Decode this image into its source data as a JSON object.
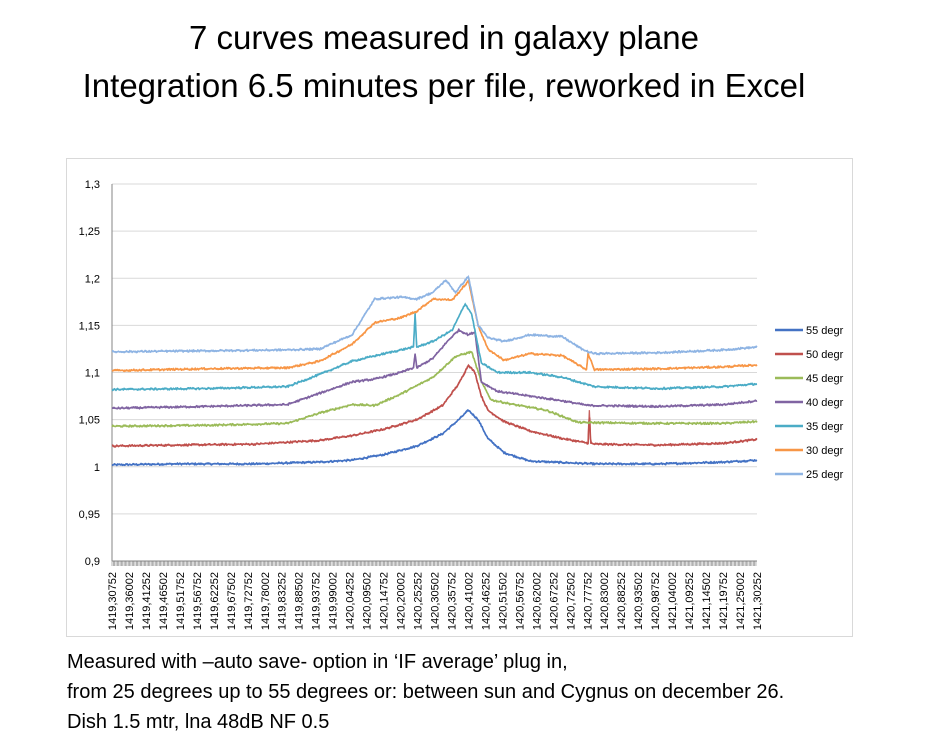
{
  "slide": {
    "title_line1": "7 curves measured in galaxy plane",
    "title_line2": "Integration 6.5 minutes per file, reworked in Excel",
    "caption_line1": "Measured with –auto save- option in ‘IF average’ plug in,",
    "caption_line2": "from 25 degrees up to 55 degrees or: between sun and Cygnus on december 26.",
    "caption_line3": "Dish 1.5 mtr, lna 48dB NF 0.5"
  },
  "chart_data": {
    "type": "line",
    "title": "",
    "xlabel": "",
    "ylabel": "",
    "ylim": [
      0.9,
      1.3
    ],
    "yticks": [
      0.9,
      0.95,
      1,
      1.05,
      1.1,
      1.15,
      1.2,
      1.25,
      1.3
    ],
    "ytick_labels": [
      "0,9",
      "0,95",
      "1",
      "1,05",
      "1,1",
      "1,15",
      "1,2",
      "1,25",
      "1,3"
    ],
    "xlim": [
      1419.30752,
      1421.30252
    ],
    "xtick_labels": [
      "1419,30752",
      "1419,36002",
      "1419,41252",
      "1419,46502",
      "1419,51752",
      "1419,56752",
      "1419,62252",
      "1419,67502",
      "1419,72752",
      "1419,78002",
      "1419,83252",
      "1419,88502",
      "1419,93752",
      "1419,99002",
      "1420,04252",
      "1420,09502",
      "1420,14752",
      "1420,20002",
      "1420,25252",
      "1420,30502",
      "1420,35752",
      "1420,41002",
      "1420,46252",
      "1420,51502",
      "1420,56752",
      "1420,62002",
      "1420,67252",
      "1420,72502",
      "1420,77752",
      "1420,83002",
      "1420,88252",
      "1420,93502",
      "1420,98752",
      "1421,04002",
      "1421,09252",
      "1421,14502",
      "1421,19752",
      "1421,25002",
      "1421,30252"
    ],
    "legend_position": "right",
    "gridlines": "horizontal",
    "series": [
      {
        "name": "55 degr",
        "color": "#4472c4",
        "x": [
          1419.3075,
          1419.5,
          1419.75,
          1419.95,
          1420.05,
          1420.15,
          1420.25,
          1420.33,
          1420.38,
          1420.41,
          1420.44,
          1420.47,
          1420.52,
          1420.6,
          1420.8,
          1421.0,
          1421.2,
          1421.3025
        ],
        "y": [
          1.002,
          1.003,
          1.003,
          1.005,
          1.007,
          1.013,
          1.022,
          1.035,
          1.05,
          1.06,
          1.05,
          1.03,
          1.015,
          1.006,
          1.003,
          1.003,
          1.005,
          1.007
        ]
      },
      {
        "name": "50 degr",
        "color": "#c0504d",
        "x": [
          1419.3075,
          1419.5,
          1419.75,
          1419.95,
          1420.05,
          1420.15,
          1420.25,
          1420.33,
          1420.38,
          1420.41,
          1420.43,
          1420.45,
          1420.47,
          1420.52,
          1420.6,
          1420.7,
          1420.78,
          1420.784,
          1420.788,
          1420.8,
          1421.0,
          1421.2,
          1421.3025
        ],
        "y": [
          1.022,
          1.023,
          1.024,
          1.028,
          1.033,
          1.04,
          1.05,
          1.065,
          1.088,
          1.108,
          1.1,
          1.075,
          1.06,
          1.048,
          1.038,
          1.03,
          1.025,
          1.06,
          1.025,
          1.024,
          1.023,
          1.025,
          1.029
        ]
      },
      {
        "name": "45 degr",
        "color": "#9bbb59",
        "x": [
          1419.3075,
          1419.6,
          1419.85,
          1419.95,
          1420.05,
          1420.12,
          1420.2,
          1420.3,
          1420.37,
          1420.42,
          1420.45,
          1420.48,
          1420.55,
          1420.65,
          1420.75,
          1421.0,
          1421.2,
          1421.3025
        ],
        "y": [
          1.043,
          1.044,
          1.046,
          1.057,
          1.066,
          1.065,
          1.077,
          1.095,
          1.117,
          1.122,
          1.09,
          1.071,
          1.066,
          1.06,
          1.047,
          1.046,
          1.046,
          1.048
        ]
      },
      {
        "name": "40 degr",
        "color": "#8064a2",
        "x": [
          1419.3075,
          1419.6,
          1419.85,
          1419.95,
          1420.05,
          1420.12,
          1420.2,
          1420.24,
          1420.245,
          1420.25,
          1420.3,
          1420.35,
          1420.38,
          1420.41,
          1420.43,
          1420.45,
          1420.5,
          1420.6,
          1420.7,
          1420.78,
          1421.0,
          1421.2,
          1421.3025
        ],
        "y": [
          1.062,
          1.064,
          1.066,
          1.078,
          1.09,
          1.093,
          1.1,
          1.105,
          1.12,
          1.105,
          1.115,
          1.135,
          1.145,
          1.14,
          1.143,
          1.09,
          1.08,
          1.075,
          1.07,
          1.065,
          1.064,
          1.066,
          1.07
        ]
      },
      {
        "name": "35 degr",
        "color": "#4bacc6",
        "x": [
          1419.3075,
          1419.6,
          1419.85,
          1419.95,
          1420.05,
          1420.15,
          1420.24,
          1420.245,
          1420.25,
          1420.3,
          1420.36,
          1420.4,
          1420.42,
          1420.45,
          1420.5,
          1420.6,
          1420.7,
          1420.8,
          1421.0,
          1421.2,
          1421.3025
        ],
        "y": [
          1.082,
          1.083,
          1.085,
          1.098,
          1.112,
          1.12,
          1.127,
          1.162,
          1.127,
          1.133,
          1.145,
          1.173,
          1.162,
          1.11,
          1.1,
          1.1,
          1.095,
          1.085,
          1.083,
          1.085,
          1.088
        ]
      },
      {
        "name": "30 degr",
        "color": "#f79646",
        "x": [
          1419.3075,
          1419.6,
          1419.85,
          1419.95,
          1420.05,
          1420.12,
          1420.2,
          1420.25,
          1420.3,
          1420.36,
          1420.41,
          1420.44,
          1420.47,
          1420.52,
          1420.6,
          1420.7,
          1420.75,
          1420.775,
          1420.78,
          1420.8,
          1421.0,
          1421.2,
          1421.3025
        ],
        "y": [
          1.102,
          1.104,
          1.105,
          1.112,
          1.13,
          1.153,
          1.158,
          1.165,
          1.178,
          1.177,
          1.197,
          1.15,
          1.125,
          1.113,
          1.12,
          1.118,
          1.108,
          1.103,
          1.12,
          1.103,
          1.104,
          1.106,
          1.108
        ]
      },
      {
        "name": "25 degr",
        "color": "#8eb4e3",
        "x": [
          1419.3075,
          1419.6,
          1419.85,
          1419.95,
          1420.05,
          1420.12,
          1420.2,
          1420.25,
          1420.3,
          1420.34,
          1420.37,
          1420.41,
          1420.44,
          1420.47,
          1420.52,
          1420.6,
          1420.7,
          1420.76,
          1420.78,
          1420.8,
          1421.0,
          1421.2,
          1421.3025
        ],
        "y": [
          1.122,
          1.123,
          1.124,
          1.125,
          1.14,
          1.178,
          1.18,
          1.178,
          1.185,
          1.198,
          1.185,
          1.202,
          1.15,
          1.137,
          1.133,
          1.14,
          1.138,
          1.125,
          1.122,
          1.12,
          1.121,
          1.124,
          1.127
        ]
      }
    ]
  }
}
